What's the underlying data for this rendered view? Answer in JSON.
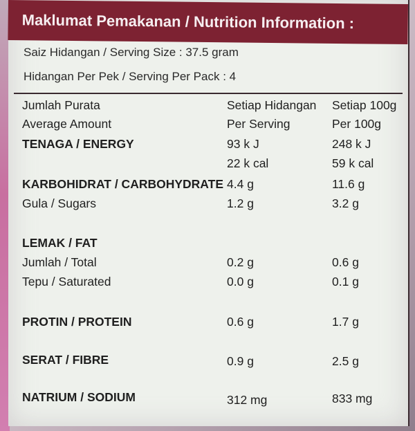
{
  "header": {
    "title": "Maklumat Pemakanan / Nutrition Information :"
  },
  "serving": {
    "size": "Saiz Hidangan / Serving Size : 37.5 gram",
    "per_pack": "Hidangan Per Pek / Serving Per Pack : 4"
  },
  "table": {
    "col_headers": {
      "c1_line1": "Jumlah Purata",
      "c1_line2": "Average Amount",
      "c2_line1": "Setiap Hidangan",
      "c2_line2": "Per Serving",
      "c3_line1": "Setiap 100g",
      "c3_line2": "Per 100g"
    },
    "rows": {
      "energy": {
        "label": "TENAGA / ENERGY",
        "serving_kj": "93 k J",
        "per100_kj": "248 k J",
        "serving_kcal": "22 k cal",
        "per100_kcal": "59 k cal"
      },
      "carb": {
        "label": "KARBOHIDRAT / CARBOHYDRATE",
        "serving": "4.4 g",
        "per100": "11.6 g"
      },
      "sugars": {
        "label": "Gula / Sugars",
        "serving": "1.2 g",
        "per100": "3.2 g"
      },
      "fat": {
        "label": "LEMAK / FAT"
      },
      "fat_total": {
        "label": "Jumlah / Total",
        "serving": "0.2 g",
        "per100": "0.6 g"
      },
      "fat_sat": {
        "label": "Tepu / Saturated",
        "serving": "0.0 g",
        "per100": "0.1 g"
      },
      "protein": {
        "label": "PROTIN / PROTEIN",
        "serving": "0.6 g",
        "per100": "1.7 g"
      },
      "fibre": {
        "label": "SERAT / FIBRE",
        "serving": "0.9 g",
        "per100": "2.5 g"
      },
      "sodium": {
        "label": "NATRIUM / SODIUM",
        "serving": "312 mg",
        "per100": "833 mg"
      }
    }
  }
}
